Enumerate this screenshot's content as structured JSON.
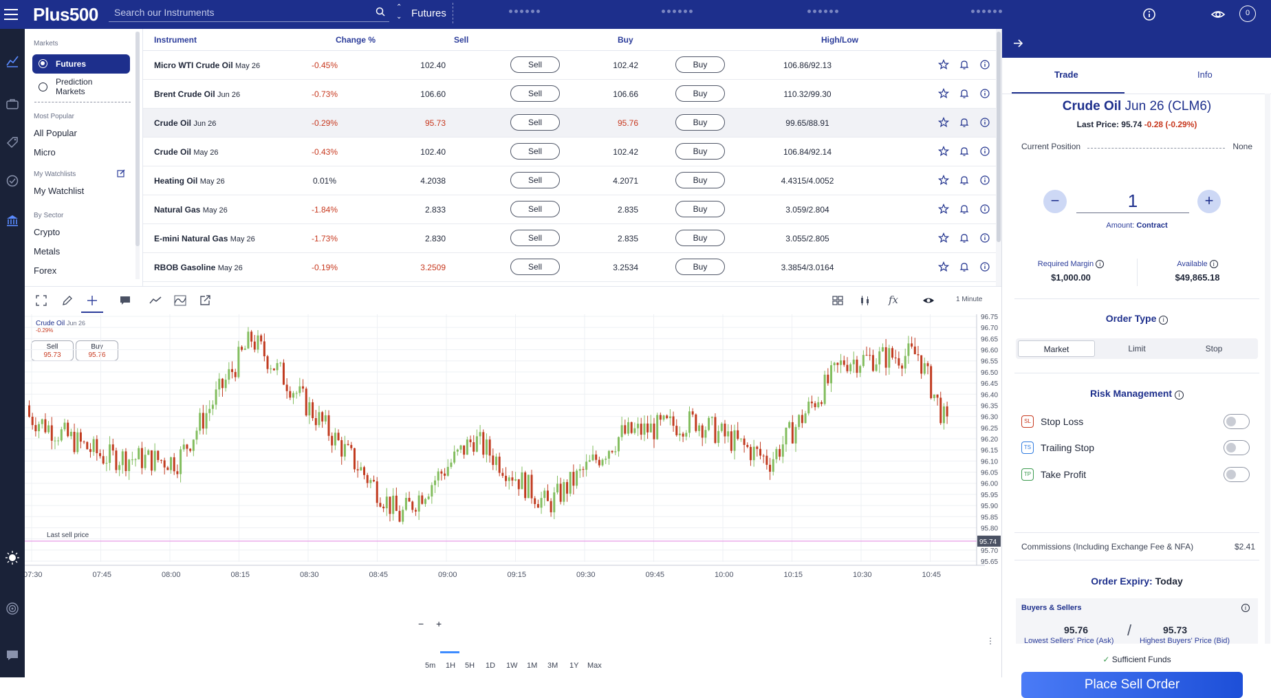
{
  "header": {
    "logo": "Plus500",
    "search_placeholder": "Search our Instruments",
    "category": "Futures",
    "avatar": "0"
  },
  "sidebar": {
    "markets_header": "Markets",
    "futures": "Futures",
    "prediction": "Prediction Markets",
    "most_popular_header": "Most Popular",
    "all_popular": "All Popular",
    "micro": "Micro",
    "watchlists_header": "My Watchlists",
    "my_watchlist": "My Watchlist",
    "by_sector_header": "By Sector",
    "crypto": "Crypto",
    "metals": "Metals",
    "forex": "Forex"
  },
  "table": {
    "headers": {
      "instrument": "Instrument",
      "change": "Change %",
      "sell": "Sell",
      "buy": "Buy",
      "highlow": "High/Low"
    },
    "sell_label": "Sell",
    "buy_label": "Buy",
    "rows": [
      {
        "name": "Micro WTI Crude Oil",
        "month": "May 26",
        "change": "-0.45%",
        "sell": "102.40",
        "buy": "102.42",
        "hl": "106.86/92.13"
      },
      {
        "name": "Brent Crude Oil",
        "month": "Jun 26",
        "change": "-0.73%",
        "sell": "106.60",
        "buy": "106.66",
        "hl": "110.32/99.30"
      },
      {
        "name": "Crude Oil",
        "month": "Jun 26",
        "change": "-0.29%",
        "sell": "95.73",
        "buy": "95.76",
        "hl": "99.65/88.91"
      },
      {
        "name": "Crude Oil",
        "month": "May 26",
        "change": "-0.43%",
        "sell": "102.40",
        "buy": "102.42",
        "hl": "106.84/92.14"
      },
      {
        "name": "Heating Oil",
        "month": "May 26",
        "change": "0.01%",
        "sell": "4.2038",
        "buy": "4.2071",
        "hl": "4.4315/4.0052"
      },
      {
        "name": "Natural Gas",
        "month": "May 26",
        "change": "-1.84%",
        "sell": "2.833",
        "buy": "2.835",
        "hl": "3.059/2.804"
      },
      {
        "name": "E-mini Natural Gas",
        "month": "May 26",
        "change": "-1.73%",
        "sell": "2.830",
        "buy": "2.835",
        "hl": "3.055/2.805"
      },
      {
        "name": "RBOB Gasoline",
        "month": "May 26",
        "change": "-0.19%",
        "sell": "3.2509",
        "buy": "3.2534",
        "hl": "3.3854/3.0164"
      }
    ]
  },
  "chart": {
    "instrument": "Crude Oil",
    "month": "Jun 26",
    "change": "-0.29%",
    "sell_label": "Sell",
    "sell_value": "95.73",
    "buy_label": "Buy",
    "buy_value": "95.76",
    "interval": "1 Minute",
    "last_sell_label": "Last sell price",
    "last_sell_value": "95.74",
    "y_ticks": [
      "96.75",
      "96.70",
      "96.65",
      "96.60",
      "96.55",
      "96.50",
      "96.45",
      "96.40",
      "96.35",
      "96.30",
      "96.25",
      "96.20",
      "96.15",
      "96.10",
      "96.05",
      "96.00",
      "95.95",
      "95.90",
      "95.85",
      "95.80",
      "95.75",
      "95.70",
      "95.65"
    ],
    "x_ticks": [
      "07:30",
      "07:45",
      "08:00",
      "08:15",
      "08:30",
      "08:45",
      "09:00",
      "09:15",
      "09:30",
      "09:45",
      "10:00",
      "10:15",
      "10:30",
      "10:45"
    ],
    "timeframes": [
      "5m",
      "1H",
      "5H",
      "1D",
      "1W",
      "1M",
      "3M",
      "1Y",
      "Max"
    ],
    "active_timeframe": "1H",
    "up_color": "#82bd5e",
    "down_color": "#c13b20"
  },
  "chart_data": {
    "type": "candlestick",
    "title": "Crude Oil Jun 26",
    "x": [
      "07:30",
      "07:45",
      "08:00",
      "08:15",
      "08:30",
      "08:45",
      "09:00",
      "09:15",
      "09:30",
      "09:45",
      "10:00",
      "10:15",
      "10:30",
      "10:45"
    ],
    "close": [
      96.3,
      96.12,
      96.1,
      96.65,
      96.25,
      95.85,
      96.2,
      95.9,
      96.22,
      96.28,
      96.1,
      96.55,
      96.58,
      95.74
    ],
    "ylim": [
      95.65,
      96.75
    ]
  },
  "trade": {
    "tab_trade": "Trade",
    "tab_info": "Info",
    "title_name": "Crude Oil",
    "title_rest": " Jun 26 (CLM6)",
    "last_price_label": "Last Price: 95.74",
    "last_price_change": "-0.28 (-0.29%)",
    "current_position_label": "Current Position",
    "current_position_value": "None",
    "quantity": "1",
    "amount_label": "Amount:",
    "amount_value": "Contract",
    "required_margin_label": "Required Margin",
    "required_margin": "$1,000.00",
    "available_label": "Available",
    "available": "$49,865.18",
    "order_type_title": "Order Type",
    "order_types": [
      "Market",
      "Limit",
      "Stop"
    ],
    "risk_title": "Risk Management",
    "stop_loss": "Stop Loss",
    "trailing_stop": "Trailing Stop",
    "take_profit": "Take Profit",
    "sl": "SL",
    "ts": "TS",
    "tp": "TP",
    "commissions_label": "Commissions (Including Exchange Fee & NFA)",
    "commissions_value": "$2.41",
    "order_expiry_label": "Order Expiry:",
    "order_expiry_value": "Today",
    "buyers_sellers_title": "Buyers & Sellers",
    "ask_value": "95.76",
    "ask_label": "Lowest Sellers' Price (Ask)",
    "bid_value": "95.73",
    "bid_label": "Highest Buyers' Price (Bid)",
    "sufficient_funds": "Sufficient Funds",
    "place_order": "Place Sell Order"
  }
}
